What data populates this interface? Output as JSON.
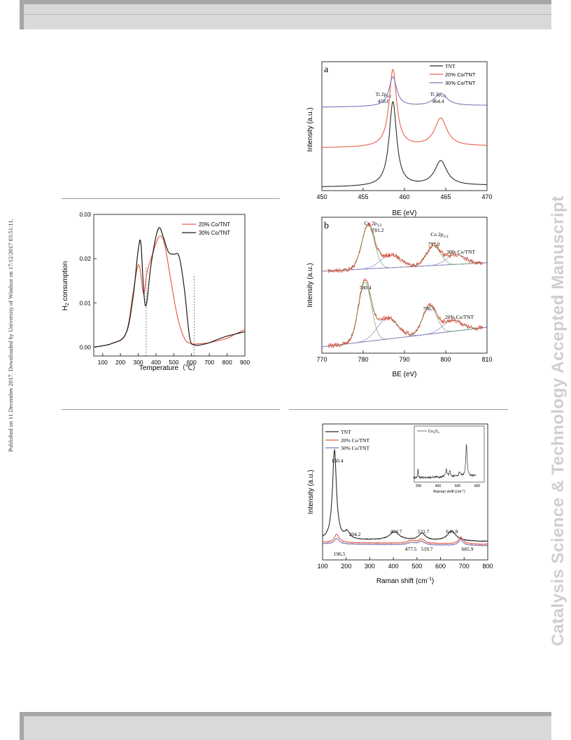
{
  "page": {
    "published_note": "Published on 11 December 2017. Downloaded by University of Windsor on 17/12/2017 03:51:11.",
    "journal_watermark": "Catalysis Science & Technology Accepted Manuscript"
  },
  "figures": {
    "xps_ti": {
      "panel_label": "a",
      "xlabel": "BE (eV)",
      "ylabel": "Intensity (a.u.)",
      "legend": [
        "TNT",
        "20% Co/TNT",
        "30% Co/TNT"
      ],
      "annotations": [
        {
          "text": "Ti 2p",
          "sub": "3/2",
          "value": "458.6"
        },
        {
          "text": "Ti 2p",
          "sub": "1/2",
          "value": "464.4"
        }
      ]
    },
    "tpr": {
      "xlabel": "Temperature（℃）",
      "ylabel_main": "H",
      "ylabel_sub": "2",
      "ylabel_rest": " consumption",
      "legend": [
        "20% Co/TNT",
        "30% Co/TNT"
      ]
    },
    "xps_co": {
      "panel_label": "b",
      "xlabel": "BE (eV)",
      "ylabel": "Intensity (a.u.)",
      "annotations": [
        {
          "text": "Co 2p",
          "sub": "3/2",
          "value": "781.2"
        },
        {
          "text": "Co 2p",
          "sub": "1/2",
          "value": "797.0"
        },
        {
          "text": "30% Co/TNT"
        },
        {
          "text": "780.4"
        },
        {
          "text": "796.1"
        },
        {
          "text": "20% Co/TNT"
        }
      ]
    },
    "raman": {
      "xlabel_main": "Raman shift (cm",
      "xlabel_sup": "-1",
      "xlabel_end": ")",
      "ylabel": "Intensity (a.u.)",
      "legend": [
        "TNT",
        "20% Co/TNT",
        "30% Co/TNT"
      ],
      "peak_labels": [
        "150.4",
        "204.2",
        "196.5",
        "404.7",
        "477.5",
        "521.7",
        "519.7",
        "646.8",
        "685.9"
      ],
      "inset": {
        "legend_main": "Co",
        "legend_sub1": "3",
        "legend_mid": "O",
        "legend_sub2": "4",
        "xlabel": "Raman shift (cm",
        "xlabel_sup": "-1",
        "xlabel_end": ")",
        "ticks": [
          "200",
          "400",
          "600",
          "800"
        ]
      }
    }
  },
  "chart_data": [
    {
      "type": "line",
      "title": "",
      "xlabel": "BE (eV)",
      "ylabel": "Intensity (a.u.)",
      "xlim": [
        450,
        470
      ],
      "xticks": [
        450,
        455,
        460,
        465,
        470
      ],
      "legend_position": "top-right",
      "series": [
        {
          "name": "TNT",
          "color": "#2b2b2b",
          "peaks": [
            458.6,
            464.4
          ]
        },
        {
          "name": "20% Co/TNT",
          "color": "#e8604c",
          "peaks": [
            458.6,
            464.4
          ]
        },
        {
          "name": "30% Co/TNT",
          "color": "#7d78b8",
          "peaks": [
            458.6,
            464.4
          ]
        }
      ]
    },
    {
      "type": "line",
      "title": "",
      "xlabel": "Temperature（℃）",
      "ylabel": "H2 consumption",
      "xlim": [
        50,
        900
      ],
      "ylim": [
        -0.002,
        0.03
      ],
      "xticks": [
        100,
        200,
        300,
        400,
        500,
        600,
        700,
        800,
        900
      ],
      "yticks": [
        0.0,
        0.01,
        0.02,
        0.03
      ],
      "ytick_labels": [
        "0.00",
        "0.01",
        "0.02",
        "0.03"
      ],
      "legend_position": "top-right",
      "series": [
        {
          "name": "20% Co/TNT",
          "color": "#e8604c",
          "x": [
            50,
            150,
            230,
            270,
            295,
            310,
            330,
            350,
            380,
            410,
            430,
            450,
            480,
            520,
            560,
            600,
            650,
            700,
            750,
            800,
            850,
            900
          ],
          "y": [
            0.0,
            0.0008,
            0.003,
            0.012,
            0.018,
            0.0178,
            0.012,
            0.017,
            0.021,
            0.0245,
            0.025,
            0.023,
            0.016,
            0.007,
            0.002,
            0.0008,
            0.0008,
            0.001,
            0.0015,
            0.002,
            0.003,
            0.004
          ]
        },
        {
          "name": "30% Co/TNT",
          "color": "#1a1a1a",
          "x": [
            50,
            150,
            230,
            270,
            300,
            315,
            330,
            345,
            370,
            400,
            420,
            440,
            470,
            500,
            530,
            560,
            590,
            620,
            650,
            700,
            750,
            800,
            850,
            900
          ],
          "y": [
            0.0,
            0.0008,
            0.003,
            0.011,
            0.022,
            0.0235,
            0.013,
            0.0095,
            0.018,
            0.025,
            0.027,
            0.025,
            0.0215,
            0.021,
            0.0205,
            0.013,
            0.002,
            0.0005,
            0.0005,
            0.001,
            0.0018,
            0.0025,
            0.003,
            0.0035
          ]
        }
      ],
      "vlines": [
        345,
        615
      ]
    },
    {
      "type": "line",
      "title": "",
      "xlabel": "BE (eV)",
      "ylabel": "Intensity (a.u.)",
      "xlim": [
        770,
        810
      ],
      "xticks": [
        770,
        780,
        790,
        800,
        810
      ],
      "series": [
        {
          "name": "30% Co/TNT",
          "color": "#e8402c",
          "peaks": [
            781.2,
            797.0
          ]
        },
        {
          "name": "20% Co/TNT",
          "color": "#e8402c",
          "peaks": [
            780.4,
            796.1
          ]
        }
      ]
    },
    {
      "type": "line",
      "title": "",
      "xlabel": "Raman shift (cm-1)",
      "ylabel": "Intensity (a.u.)",
      "xlim": [
        100,
        800
      ],
      "xticks": [
        100,
        200,
        300,
        400,
        500,
        600,
        700,
        800
      ],
      "legend_position": "top-left",
      "series": [
        {
          "name": "TNT",
          "color": "#2b2b2b",
          "peaks": [
            150.4,
            204.2,
            404.7,
            521.7,
            646.8
          ]
        },
        {
          "name": "20% Co/TNT",
          "color": "#e8604c",
          "peaks": [
            196.5,
            477.5,
            519.7,
            685.9
          ]
        },
        {
          "name": "30% Co/TNT",
          "color": "#7d78b8",
          "peaks": [
            196.5,
            477.5,
            519.7,
            685.9
          ]
        }
      ]
    }
  ]
}
